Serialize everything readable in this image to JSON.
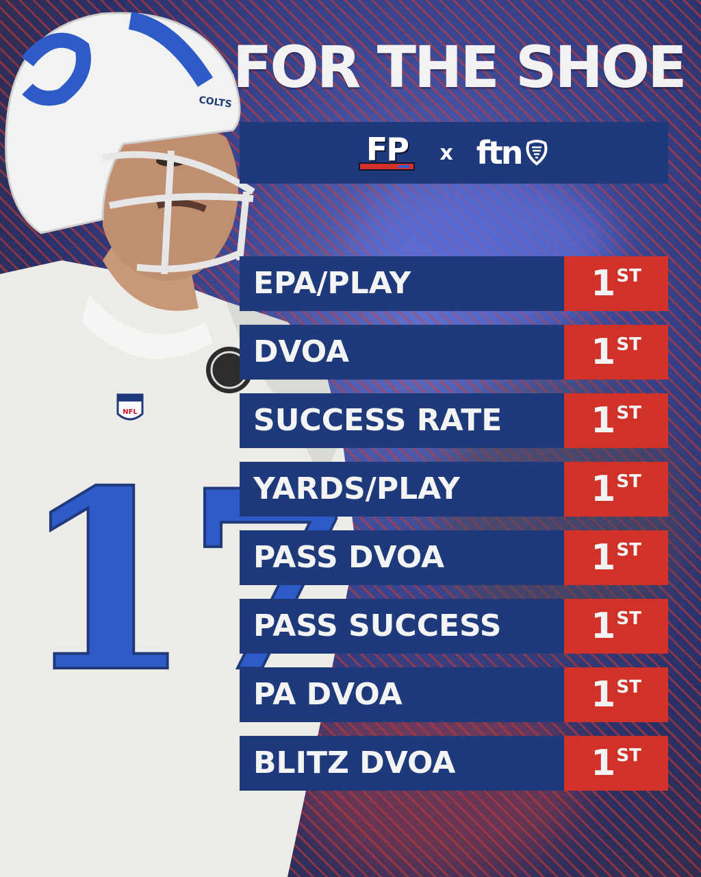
{
  "title": "FOR THE SHOE",
  "brand": {
    "left_logo": "FP",
    "separator": "x",
    "right_logo": "ftn"
  },
  "colors": {
    "navy": "#1f3a7a",
    "red": "#d0322a",
    "jersey_blue": "#2f5bc8"
  },
  "player": {
    "jersey_number": "17",
    "helmet_text": "COLTS",
    "shield_text": "NFL"
  },
  "stats": [
    {
      "label": "EPA/PLAY",
      "rank": "1",
      "suffix": "ST"
    },
    {
      "label": "DVOA",
      "rank": "1",
      "suffix": "ST"
    },
    {
      "label": "SUCCESS RATE",
      "rank": "1",
      "suffix": "ST"
    },
    {
      "label": "YARDS/PLAY",
      "rank": "1",
      "suffix": "ST"
    },
    {
      "label": "PASS DVOA",
      "rank": "1",
      "suffix": "ST"
    },
    {
      "label": "PASS SUCCESS",
      "rank": "1",
      "suffix": "ST"
    },
    {
      "label": "PA DVOA",
      "rank": "1",
      "suffix": "ST"
    },
    {
      "label": "BLITZ DVOA",
      "rank": "1",
      "suffix": "ST"
    }
  ]
}
